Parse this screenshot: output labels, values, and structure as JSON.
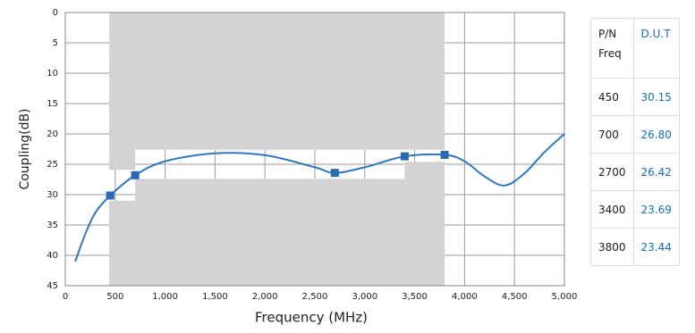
{
  "chart_data": {
    "type": "line",
    "x_label": "Frequency (MHz)",
    "y_label": "Coupling(dB)",
    "xlim": [
      0,
      5000
    ],
    "ylim": [
      0,
      45
    ],
    "y_inverted": true,
    "grid": true,
    "xticks": [
      0,
      500,
      {
        "value": 1000,
        "label": "1,000"
      },
      {
        "value": 1500,
        "label": "1,500"
      },
      {
        "value": 2000,
        "label": "2,000"
      },
      {
        "value": 2500,
        "label": "2,500"
      },
      {
        "value": 3000,
        "label": "3,000"
      },
      {
        "value": 3500,
        "label": "3,500"
      },
      {
        "value": 4000,
        "label": "4,000"
      },
      {
        "value": 4500,
        "label": "4,500"
      },
      {
        "value": 5000,
        "label": "5,000"
      }
    ],
    "yticks": [
      0,
      5,
      10,
      15,
      20,
      25,
      30,
      35,
      40,
      45
    ],
    "mask_color": "#d3d3d3",
    "masks": [
      {
        "x": [
          440,
          700
        ],
        "y": [
          0,
          25.9
        ]
      },
      {
        "x": [
          700,
          3800
        ],
        "y": [
          0,
          22.6
        ]
      },
      {
        "x": [
          440,
          700
        ],
        "y": [
          31,
          45
        ]
      },
      {
        "x": [
          700,
          3400
        ],
        "y": [
          27.4,
          45
        ]
      },
      {
        "x": [
          3400,
          3800
        ],
        "y": [
          24.6,
          45
        ]
      }
    ],
    "series": [
      {
        "color": "#2f78be",
        "x": [
          100,
          200,
          300,
          450,
          700,
          1000,
          1500,
          2000,
          2500,
          2700,
          3000,
          3400,
          3800,
          4000,
          4200,
          4400,
          4600,
          4800,
          5000
        ],
        "values": [
          41,
          36.5,
          33,
          30.15,
          26.8,
          24.5,
          23.2,
          23.5,
          25.5,
          26.42,
          25.5,
          23.69,
          23.44,
          24.5,
          27,
          28.5,
          26.5,
          23,
          20
        ]
      }
    ],
    "markers": {
      "color": "#2a6ab5",
      "x": [
        450,
        700,
        2700,
        3400,
        3800
      ],
      "values": [
        30.15,
        26.8,
        26.42,
        23.69,
        23.44
      ]
    }
  },
  "table": {
    "header": [
      [
        "P/N",
        "Freq"
      ],
      [
        "D.U.T"
      ]
    ],
    "rows": [
      [
        "450",
        "30.15"
      ],
      [
        "700",
        "26.80"
      ],
      [
        "2700",
        "26.42"
      ],
      [
        "3400",
        "23.69"
      ],
      [
        "3800",
        "23.44"
      ]
    ]
  }
}
